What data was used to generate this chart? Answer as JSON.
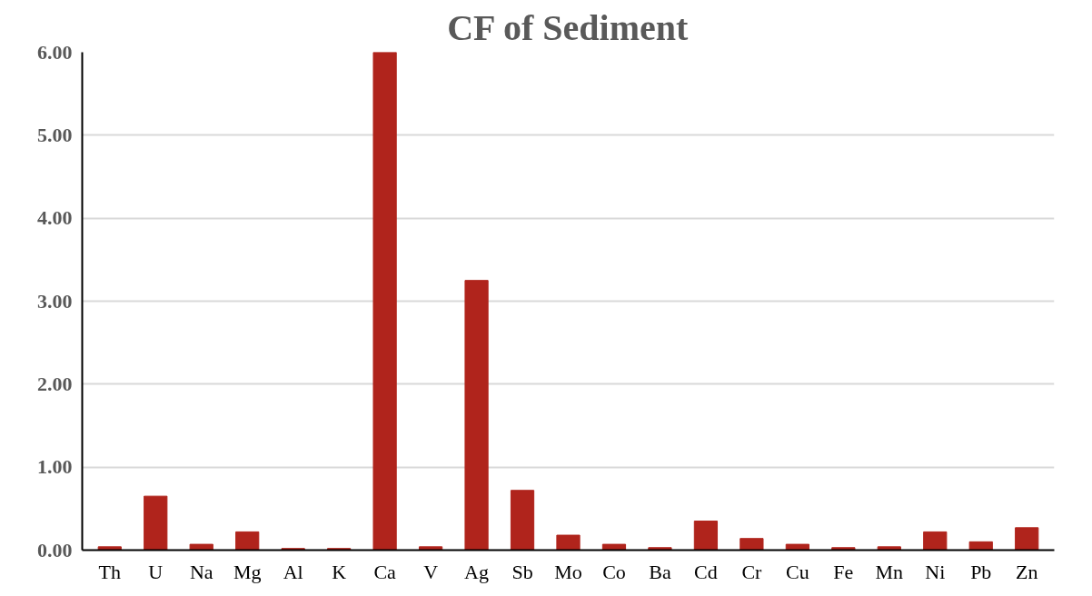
{
  "chart_data": {
    "type": "bar",
    "title": "CF of Sediment",
    "categories": [
      "Th",
      "U",
      "Na",
      "Mg",
      "Al",
      "K",
      "Ca",
      "V",
      "Ag",
      "Sb",
      "Mo",
      "Co",
      "Ba",
      "Cd",
      "Cr",
      "Cu",
      "Fe",
      "Mn",
      "Ni",
      "Pb",
      "Zn"
    ],
    "values": [
      0.04,
      0.65,
      0.07,
      0.22,
      0.02,
      0.02,
      6.0,
      0.04,
      3.25,
      0.72,
      0.18,
      0.07,
      0.03,
      0.35,
      0.14,
      0.07,
      0.03,
      0.04,
      0.22,
      0.1,
      0.27
    ],
    "color": "#b0241c",
    "ylim": [
      0,
      6.0
    ],
    "yticks": [
      {
        "value": 0,
        "label": "0.00"
      },
      {
        "value": 1,
        "label": "1.00"
      },
      {
        "value": 2,
        "label": "2.00"
      },
      {
        "value": 3,
        "label": "3.00"
      },
      {
        "value": 4,
        "label": "4.00"
      },
      {
        "value": 5,
        "label": "5.00"
      },
      {
        "value": 6,
        "label": "6.00"
      }
    ],
    "grid": "y"
  }
}
